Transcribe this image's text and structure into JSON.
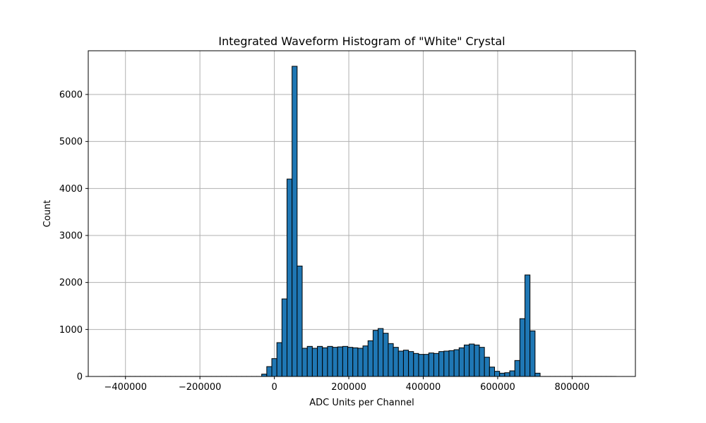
{
  "chart_data": {
    "type": "bar",
    "title": "Integrated Waveform Histogram of \"White\" Crystal",
    "xlabel": "ADC Units per Channel",
    "ylabel": "Count",
    "xlim": [
      -500000,
      970000
    ],
    "ylim": [
      0,
      6930
    ],
    "grid": true,
    "bar_color": "#1f77b4",
    "edge_color": "#000000",
    "xticks": [
      {
        "value": -400000,
        "label": "−400000"
      },
      {
        "value": -200000,
        "label": "−200000"
      },
      {
        "value": 0,
        "label": "0"
      },
      {
        "value": 200000,
        "label": "200000"
      },
      {
        "value": 400000,
        "label": "400000"
      },
      {
        "value": 600000,
        "label": "600000"
      },
      {
        "value": 800000,
        "label": "800000"
      }
    ],
    "yticks": [
      {
        "value": 0,
        "label": "0"
      },
      {
        "value": 1000,
        "label": "1000"
      },
      {
        "value": 2000,
        "label": "2000"
      },
      {
        "value": 3000,
        "label": "3000"
      },
      {
        "value": 4000,
        "label": "4000"
      },
      {
        "value": 5000,
        "label": "5000"
      },
      {
        "value": 6000,
        "label": "6000"
      }
    ],
    "bin_start": -442000,
    "bin_width": 13600,
    "counts": [
      1,
      1,
      1,
      1,
      1,
      1,
      1,
      1,
      1,
      1,
      1,
      1,
      1,
      1,
      1,
      1,
      1,
      1,
      1,
      1,
      1,
      1,
      1,
      1,
      1,
      1,
      1,
      1,
      1,
      1,
      50,
      210,
      380,
      720,
      1650,
      4200,
      6600,
      2350,
      600,
      640,
      600,
      640,
      610,
      640,
      620,
      630,
      640,
      620,
      610,
      600,
      650,
      760,
      980,
      1020,
      920,
      700,
      620,
      540,
      560,
      530,
      490,
      470,
      470,
      500,
      490,
      530,
      540,
      550,
      570,
      610,
      670,
      690,
      670,
      620,
      410,
      200,
      110,
      70,
      80,
      120,
      340,
      1230,
      2160,
      970,
      70,
      1,
      1,
      1,
      1,
      1,
      1,
      1,
      1,
      1,
      1,
      1,
      1,
      1,
      1,
      1
    ]
  }
}
